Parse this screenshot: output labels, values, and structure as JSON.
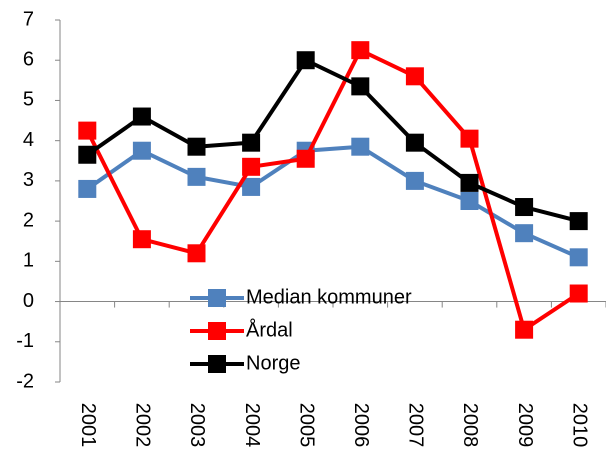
{
  "chart_data": {
    "type": "line",
    "categories": [
      "2001",
      "2002",
      "2003",
      "2004",
      "2005",
      "2006",
      "2007",
      "2008",
      "2009",
      "2010"
    ],
    "series": [
      {
        "name": "Median kommuner",
        "color": "#4f81bd",
        "values": [
          2.8,
          3.75,
          3.1,
          2.85,
          3.75,
          3.85,
          3.0,
          2.5,
          1.7,
          1.1
        ]
      },
      {
        "name": "Årdal",
        "color": "#ff0000",
        "values": [
          4.25,
          1.55,
          1.2,
          3.35,
          3.55,
          6.25,
          5.6,
          4.05,
          -0.7,
          0.2
        ]
      },
      {
        "name": "Norge",
        "color": "#000000",
        "values": [
          3.65,
          4.6,
          3.85,
          3.95,
          6.0,
          5.35,
          3.95,
          2.95,
          2.35,
          2.0
        ]
      }
    ],
    "ylim": [
      -2,
      7
    ],
    "yticks": [
      -2,
      -1,
      0,
      1,
      2,
      3,
      4,
      5,
      6,
      7
    ],
    "grid": false,
    "legend": "lower-left"
  }
}
